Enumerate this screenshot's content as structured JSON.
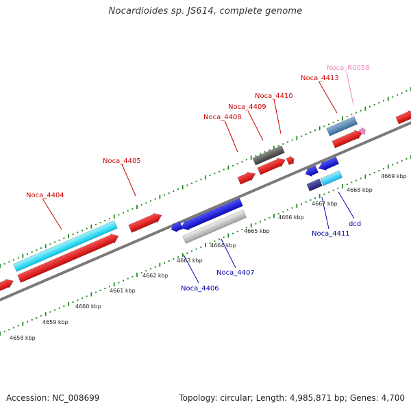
{
  "title": "Nocardioides sp. JS614, complete genome",
  "footer": {
    "accession": "Accession: NC_008699",
    "stats": "Topology: circular; Length: 4,985,871 bp; Genes: 4,700"
  },
  "colors": {
    "forward_label": "#cc0000",
    "reverse_label": "#0000aa",
    "rna_label": "#ee88bb",
    "backbone": "#7a7a7a",
    "tick_dots": "#1f8a1f"
  },
  "ruler": {
    "labels": [
      "4658 kbp",
      "4659 kbp",
      "4660 kbp",
      "4661 kbp",
      "4662 kbp",
      "4663 kbp",
      "4664 kbp",
      "4665 kbp",
      "4666 kbp",
      "4667 kbp",
      "4668 kbp",
      "4669 kbp"
    ]
  },
  "labels": {
    "forward": [
      "Noca_4404",
      "Noca_4405",
      "Noca_4408",
      "Noca_4409",
      "Noca_4410",
      "Noca_4413"
    ],
    "rna": [
      "Noca_R0058"
    ],
    "reverse": [
      "Noca_4406",
      "Noca_4407",
      "Noca_4411",
      "dcd"
    ]
  }
}
